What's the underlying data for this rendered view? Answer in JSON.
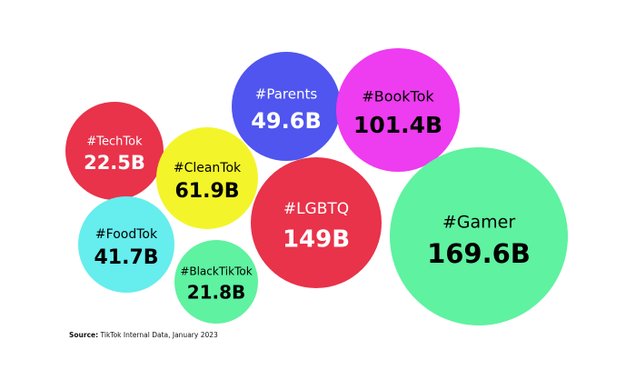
{
  "chart_data": {
    "type": "bubble",
    "unit": "B",
    "bubbles": [
      {
        "label": "#TechTok",
        "value": 22.5,
        "value_label": "22.5B",
        "color": "#e8334a",
        "text_color": "#ffffff"
      },
      {
        "label": "#CleanTok",
        "value": 61.9,
        "value_label": "61.9B",
        "color": "#f3f52a",
        "text_color": "#000000"
      },
      {
        "label": "#Parents",
        "value": 49.6,
        "value_label": "49.6B",
        "color": "#4f55ee",
        "text_color": "#ffffff"
      },
      {
        "label": "#BookTok",
        "value": 101.4,
        "value_label": "101.4B",
        "color": "#ee3cf0",
        "text_color": "#000000"
      },
      {
        "label": "#LGBTQ",
        "value": 149,
        "value_label": "149B",
        "color": "#e8334a",
        "text_color": "#ffffff"
      },
      {
        "label": "#FoodTok",
        "value": 41.7,
        "value_label": "41.7B",
        "color": "#66eded",
        "text_color": "#000000"
      },
      {
        "label": "#BlackTikTok",
        "value": 21.8,
        "value_label": "21.8B",
        "color": "#5ff2a0",
        "text_color": "#000000"
      },
      {
        "label": "#Gamer",
        "value": 169.6,
        "value_label": "169.6B",
        "color": "#5ff2a0",
        "text_color": "#000000"
      }
    ]
  },
  "source": {
    "prefix": "Source:",
    "text": " TikTok Internal Data, January 2023"
  }
}
